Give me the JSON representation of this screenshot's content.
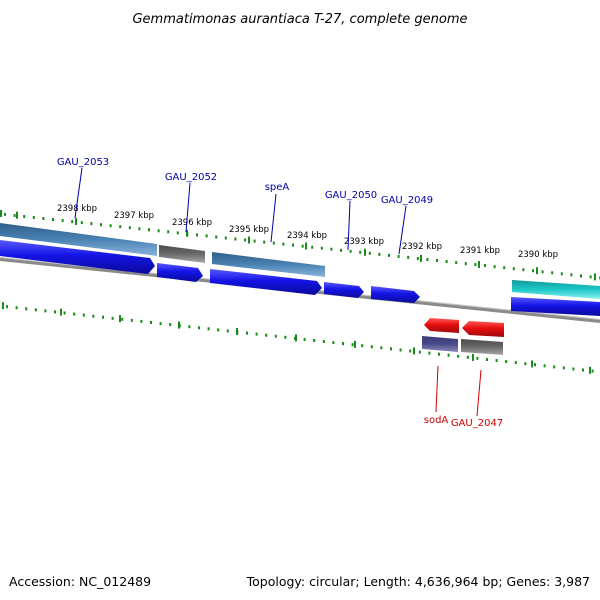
{
  "title": "Gemmatimonas aurantiaca T-27, complete genome",
  "footer": {
    "accession": "Accession: NC_012489",
    "stats": "Topology: circular; Length: 4,636,964 bp; Genes: 3,987"
  },
  "colors": {
    "tick": "#1a8a1a",
    "backbone": "#888888",
    "cds_forward": "#1414e6",
    "cds_reverse": "#e60e0e",
    "feature_steelblue": "#4a82b4",
    "feature_gray": "#6a6a6a",
    "feature_cyan": "#1ec8c8",
    "feature_slate": "#4a4a8c",
    "label_forward": "#0000aa",
    "label_reverse": "#cc0000"
  },
  "ticks": [
    {
      "label": "2398 kbp"
    },
    {
      "label": "2397 kbp"
    },
    {
      "label": "2396 kbp"
    },
    {
      "label": "2395 kbp"
    },
    {
      "label": "2394 kbp"
    },
    {
      "label": "2393 kbp"
    },
    {
      "label": "2392 kbp"
    },
    {
      "label": "2391 kbp"
    },
    {
      "label": "2390 kbp"
    }
  ],
  "gene_labels": [
    {
      "text": "GAU_2053",
      "strand": "forward"
    },
    {
      "text": "GAU_2052",
      "strand": "forward"
    },
    {
      "text": "speA",
      "strand": "forward"
    },
    {
      "text": "GAU_2050",
      "strand": "forward"
    },
    {
      "text": "GAU_2049",
      "strand": "forward"
    },
    {
      "text": "sodA",
      "strand": "reverse"
    },
    {
      "text": "GAU_2047",
      "strand": "reverse"
    }
  ]
}
